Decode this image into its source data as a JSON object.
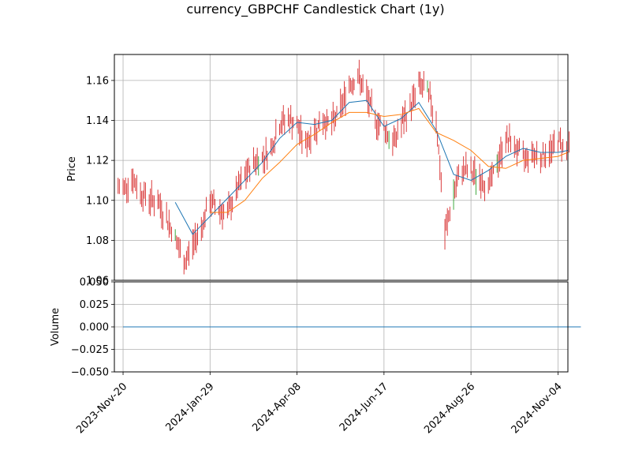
{
  "chart_data": {
    "type": "candlestick",
    "title": "currency_GBPCHF Candlestick Chart (1y)",
    "colors": {
      "down_candle": "#d62728",
      "up_candle": "#2ca02c",
      "ma_short": "#1f77b4",
      "ma_long": "#ff7f0e",
      "volume": "#1f77b4",
      "grid": "#b0b0b0"
    },
    "price_panel": {
      "ylabel": "Price",
      "ylim": [
        1.06,
        1.173
      ],
      "yticks": [
        1.06,
        1.08,
        1.1,
        1.12,
        1.14,
        1.16
      ],
      "ytick_labels": [
        "1.06",
        "1.08",
        "1.10",
        "1.12",
        "1.14",
        "1.16"
      ],
      "grid": true
    },
    "volume_panel": {
      "ylabel": "Volume",
      "ylim": [
        -0.05,
        0.05
      ],
      "yticks": [
        -0.05,
        -0.025,
        0.0,
        0.025,
        0.05
      ],
      "ytick_labels": [
        "−0.050",
        "−0.025",
        "0.000",
        "0.025",
        "0.050"
      ],
      "volume_value": 0,
      "grid": true
    },
    "x_axis": {
      "start_date": "2023-11-13",
      "end_date": "2024-11-12",
      "tick_dates": [
        "2023-11-20",
        "2024-01-29",
        "2024-04-08",
        "2024-06-17",
        "2024-08-26",
        "2024-11-04"
      ],
      "tick_labels": [
        "2023-Nov-20",
        "2024-Jan-29",
        "2024-Apr-08",
        "2024-Jun-17",
        "2024-Aug-26",
        "2024-Nov-04"
      ]
    },
    "series": [
      {
        "kind": "ohlc_close",
        "dates": [
          "2023-11-20",
          "2023-11-27",
          "2023-12-04",
          "2023-12-11",
          "2023-12-18",
          "2023-12-25",
          "2024-01-01",
          "2024-01-08",
          "2024-01-15",
          "2024-01-22",
          "2024-01-29",
          "2024-02-05",
          "2024-02-12",
          "2024-02-19",
          "2024-02-26",
          "2024-03-04",
          "2024-03-11",
          "2024-03-18",
          "2024-03-25",
          "2024-04-01",
          "2024-04-08",
          "2024-04-15",
          "2024-04-22",
          "2024-04-29",
          "2024-05-06",
          "2024-05-13",
          "2024-05-20",
          "2024-05-27",
          "2024-06-03",
          "2024-06-10",
          "2024-06-17",
          "2024-06-24",
          "2024-07-01",
          "2024-07-08",
          "2024-07-15",
          "2024-07-22",
          "2024-07-29",
          "2024-08-05",
          "2024-08-12",
          "2024-08-19",
          "2024-08-26",
          "2024-09-02",
          "2024-09-09",
          "2024-09-16",
          "2024-09-23",
          "2024-09-30",
          "2024-10-07",
          "2024-10-14",
          "2024-10-21",
          "2024-10-28",
          "2024-11-04",
          "2024-11-11"
        ],
        "values": [
          1.106,
          1.111,
          1.104,
          1.101,
          1.099,
          1.091,
          1.081,
          1.068,
          1.078,
          1.087,
          1.099,
          1.096,
          1.093,
          1.104,
          1.112,
          1.119,
          1.121,
          1.126,
          1.138,
          1.141,
          1.137,
          1.128,
          1.135,
          1.14,
          1.138,
          1.146,
          1.158,
          1.162,
          1.152,
          1.14,
          1.137,
          1.128,
          1.138,
          1.146,
          1.158,
          1.154,
          1.141,
          1.083,
          1.103,
          1.116,
          1.114,
          1.111,
          1.107,
          1.118,
          1.131,
          1.127,
          1.121,
          1.124,
          1.122,
          1.124,
          1.13,
          1.126
        ]
      },
      {
        "kind": "moving_average_short",
        "dates": [
          "2024-01-01",
          "2024-01-15",
          "2024-01-29",
          "2024-02-12",
          "2024-02-26",
          "2024-03-11",
          "2024-03-25",
          "2024-04-08",
          "2024-04-22",
          "2024-05-06",
          "2024-05-20",
          "2024-06-03",
          "2024-06-17",
          "2024-07-01",
          "2024-07-15",
          "2024-07-29",
          "2024-08-12",
          "2024-08-26",
          "2024-09-09",
          "2024-09-23",
          "2024-10-07",
          "2024-10-21",
          "2024-11-04",
          "2024-11-12"
        ],
        "values": [
          1.099,
          1.083,
          1.092,
          1.101,
          1.11,
          1.119,
          1.131,
          1.139,
          1.138,
          1.14,
          1.149,
          1.15,
          1.137,
          1.141,
          1.149,
          1.135,
          1.113,
          1.11,
          1.115,
          1.122,
          1.126,
          1.124,
          1.124,
          1.125
        ]
      },
      {
        "kind": "moving_average_long",
        "dates": [
          "2024-01-29",
          "2024-02-12",
          "2024-02-26",
          "2024-03-11",
          "2024-03-25",
          "2024-04-08",
          "2024-04-22",
          "2024-05-06",
          "2024-05-20",
          "2024-06-03",
          "2024-06-17",
          "2024-07-01",
          "2024-07-15",
          "2024-07-29",
          "2024-08-12",
          "2024-08-26",
          "2024-09-09",
          "2024-09-23",
          "2024-10-07",
          "2024-10-21",
          "2024-11-04",
          "2024-11-12"
        ],
        "values": [
          1.094,
          1.094,
          1.1,
          1.111,
          1.119,
          1.128,
          1.133,
          1.139,
          1.144,
          1.144,
          1.142,
          1.143,
          1.146,
          1.134,
          1.13,
          1.125,
          1.117,
          1.116,
          1.12,
          1.121,
          1.122,
          1.124
        ]
      }
    ]
  }
}
